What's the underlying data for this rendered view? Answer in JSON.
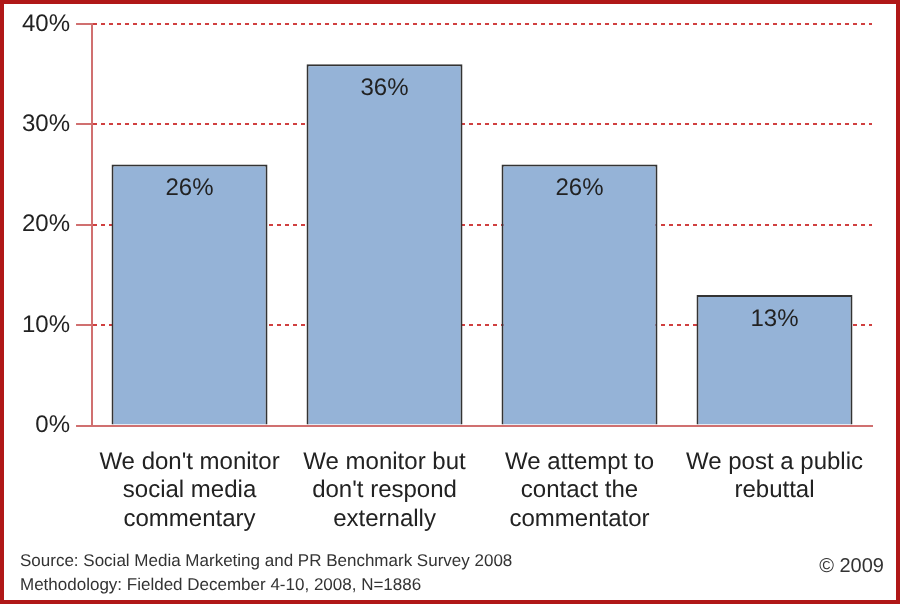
{
  "chart_data": {
    "type": "bar",
    "categories": [
      "We don't monitor social media commentary",
      "We monitor but don't respond externally",
      "We attempt to contact the commentator",
      "We post a public rebuttal"
    ],
    "values": [
      26,
      36,
      26,
      13
    ],
    "color": "#95b3d7",
    "value_labels": [
      "26%",
      "36%",
      "26%",
      "13%"
    ],
    "ylim": [
      0,
      40
    ],
    "yticks": [
      {
        "value": 0,
        "label": "0%"
      },
      {
        "value": 10,
        "label": "10%"
      },
      {
        "value": 20,
        "label": "20%"
      },
      {
        "value": 30,
        "label": "30%"
      },
      {
        "value": 40,
        "label": "40%"
      }
    ],
    "grid": "y",
    "legend": false,
    "annotations": [
      "Source: Social Media Marketing and PR Benchmark Survey 2008",
      "Methodology: Fielded December 4-10, 2008, N=1886",
      "© 2009"
    ]
  }
}
